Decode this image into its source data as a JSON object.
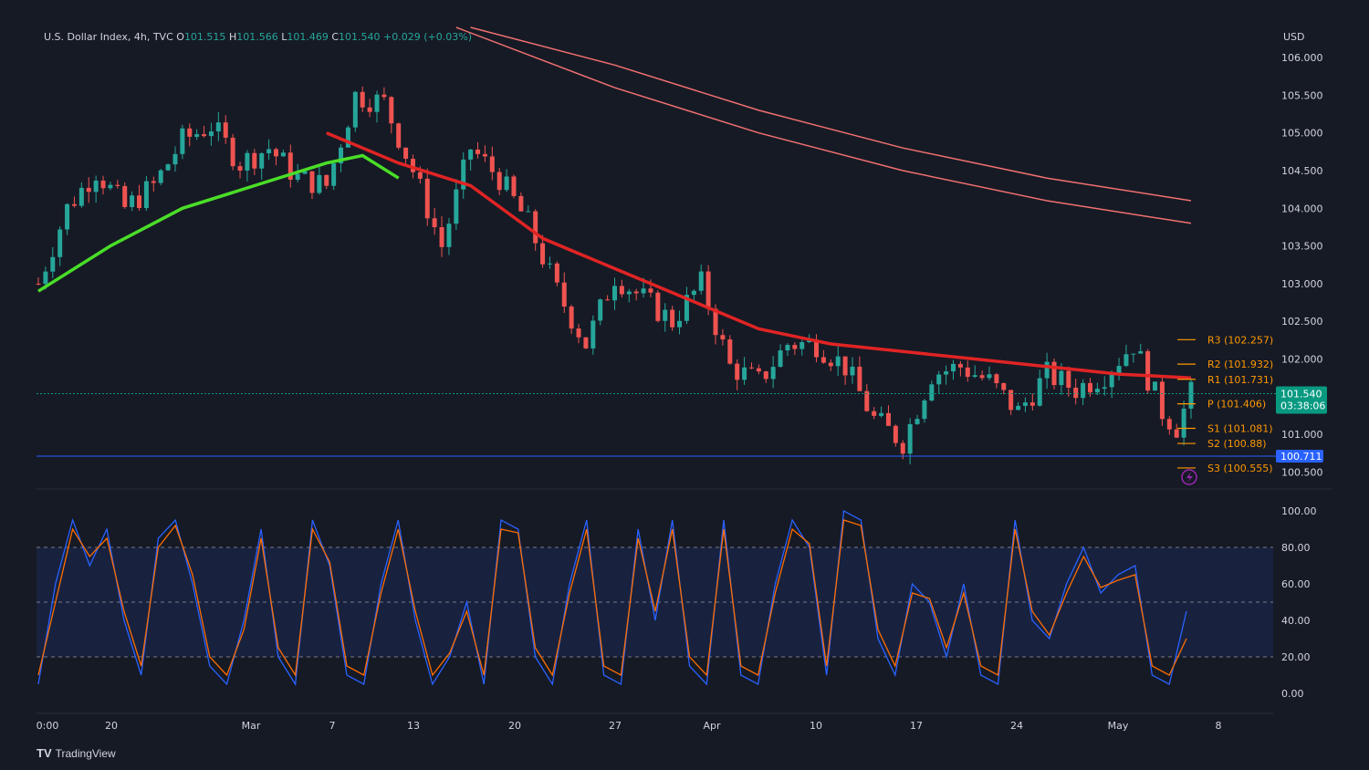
{
  "header": {
    "symbol": "U.S. Dollar Index, 4h, TVC",
    "o_label": "O",
    "o_value": "101.515",
    "h_label": "H",
    "h_value": "101.566",
    "l_label": "L",
    "l_value": "101.469",
    "c_label": "C",
    "c_value": "101.540",
    "change": "+0.029 (+0.03%)"
  },
  "brand": {
    "logo": "TV",
    "name": "TradingView"
  },
  "colors": {
    "background": "#161a25",
    "bull": "#26a69a",
    "bear": "#ef5350",
    "ema_red": "#e02424",
    "ema_green": "#4ade28",
    "ema_long": "#f07070",
    "pivot": "#ff9800",
    "stoch_k": "#2962ff",
    "stoch_d": "#ff6d00",
    "support_line": "#2962ff",
    "price_tag": "#089981"
  },
  "chart_data": [
    {
      "type": "candlestick",
      "currency_label": "USD",
      "ylim": [
        100.3,
        106.4
      ],
      "yticks": [
        "106.000",
        "105.500",
        "105.000",
        "104.500",
        "104.000",
        "103.500",
        "103.000",
        "102.500",
        "102.000",
        "101.500",
        "101.000",
        "100.500"
      ],
      "xticks": [
        "0:00",
        "20",
        "Mar",
        "7",
        "13",
        "20",
        "27",
        "Apr",
        "10",
        "17",
        "24",
        "May",
        "8"
      ],
      "close_path": [
        [
          0,
          103.0
        ],
        [
          4,
          104.0
        ],
        [
          8,
          104.5
        ],
        [
          12,
          104.0
        ],
        [
          16,
          104.3
        ],
        [
          20,
          104.9
        ],
        [
          24,
          105.1
        ],
        [
          28,
          104.6
        ],
        [
          32,
          104.8
        ],
        [
          36,
          104.4
        ],
        [
          40,
          104.3
        ],
        [
          44,
          105.5
        ],
        [
          48,
          105.4
        ],
        [
          52,
          104.5
        ],
        [
          56,
          103.5
        ],
        [
          60,
          104.8
        ],
        [
          64,
          104.4
        ],
        [
          68,
          103.8
        ],
        [
          72,
          102.9
        ],
        [
          76,
          102.2
        ],
        [
          80,
          103.1
        ],
        [
          84,
          102.8
        ],
        [
          88,
          102.5
        ],
        [
          92,
          103.0
        ],
        [
          96,
          101.9
        ],
        [
          100,
          101.7
        ],
        [
          104,
          102.2
        ],
        [
          108,
          102.2
        ],
        [
          112,
          101.9
        ],
        [
          116,
          101.2
        ],
        [
          120,
          100.9
        ],
        [
          124,
          101.8
        ],
        [
          128,
          101.9
        ],
        [
          132,
          101.7
        ],
        [
          136,
          101.3
        ],
        [
          140,
          101.8
        ],
        [
          144,
          101.6
        ],
        [
          148,
          101.8
        ],
        [
          152,
          102.2
        ],
        [
          156,
          101.3
        ],
        [
          158,
          101.1
        ],
        [
          160,
          101.54
        ]
      ],
      "ema_short_red": [
        [
          40,
          105.0
        ],
        [
          50,
          104.6
        ],
        [
          60,
          104.3
        ],
        [
          70,
          103.6
        ],
        [
          80,
          103.2
        ],
        [
          90,
          102.8
        ],
        [
          100,
          102.4
        ],
        [
          110,
          102.2
        ],
        [
          120,
          102.1
        ],
        [
          130,
          102.0
        ],
        [
          140,
          101.9
        ],
        [
          150,
          101.8
        ],
        [
          160,
          101.75
        ]
      ],
      "ema_green": [
        [
          0,
          102.9
        ],
        [
          10,
          103.5
        ],
        [
          20,
          104.0
        ],
        [
          30,
          104.3
        ],
        [
          40,
          104.6
        ],
        [
          45,
          104.7
        ],
        [
          50,
          104.4
        ]
      ],
      "ema_long_1": [
        [
          60,
          106.4
        ],
        [
          80,
          105.9
        ],
        [
          100,
          105.3
        ],
        [
          120,
          104.8
        ],
        [
          140,
          104.4
        ],
        [
          160,
          104.1
        ]
      ],
      "ema_long_2": [
        [
          58,
          106.4
        ],
        [
          80,
          105.6
        ],
        [
          100,
          105.0
        ],
        [
          120,
          104.5
        ],
        [
          140,
          104.1
        ],
        [
          160,
          103.8
        ]
      ],
      "pivots": [
        {
          "label": "R3 (102.257)",
          "value": 102.257
        },
        {
          "label": "R2 (101.932)",
          "value": 101.932
        },
        {
          "label": "R1 (101.731)",
          "value": 101.731
        },
        {
          "label": "P (101.406)",
          "value": 101.406
        },
        {
          "label": "S1 (101.081)",
          "value": 101.081
        },
        {
          "label": "S2 (100.88)",
          "value": 100.88
        },
        {
          "label": "S3 (100.555)",
          "value": 100.555
        }
      ],
      "last_price": {
        "value": 101.54,
        "label": "101.540",
        "countdown": "03:38:06"
      },
      "support_level": {
        "value": 100.711,
        "label": "100.711"
      }
    },
    {
      "type": "line",
      "ylim": [
        0,
        100
      ],
      "yticks": [
        "100.00",
        "80.00",
        "60.00",
        "40.00",
        "20.00",
        "0.00"
      ],
      "band": [
        20,
        80
      ],
      "midline": 50,
      "series": [
        {
          "color_key": "stoch_k",
          "values": [
            5,
            60,
            95,
            70,
            90,
            40,
            10,
            85,
            95,
            60,
            15,
            5,
            40,
            90,
            20,
            5,
            95,
            70,
            10,
            5,
            60,
            95,
            40,
            5,
            20,
            50,
            5,
            95,
            90,
            20,
            5,
            60,
            95,
            10,
            5,
            90,
            40,
            95,
            15,
            5,
            95,
            10,
            5,
            60,
            95,
            80,
            10,
            100,
            95,
            30,
            10,
            60,
            50,
            20,
            60,
            10,
            5,
            95,
            40,
            30,
            60,
            80,
            55,
            65,
            70,
            10,
            5,
            45
          ]
        },
        {
          "color_key": "stoch_d",
          "values": [
            10,
            50,
            90,
            75,
            85,
            45,
            15,
            80,
            92,
            65,
            20,
            10,
            35,
            85,
            25,
            10,
            90,
            72,
            15,
            10,
            55,
            90,
            45,
            10,
            22,
            45,
            10,
            90,
            88,
            25,
            10,
            55,
            90,
            15,
            10,
            85,
            45,
            90,
            20,
            10,
            90,
            15,
            10,
            55,
            90,
            82,
            15,
            95,
            92,
            35,
            15,
            55,
            52,
            25,
            55,
            15,
            10,
            90,
            45,
            32,
            55,
            75,
            58,
            62,
            65,
            15,
            10,
            30
          ]
        }
      ]
    }
  ]
}
